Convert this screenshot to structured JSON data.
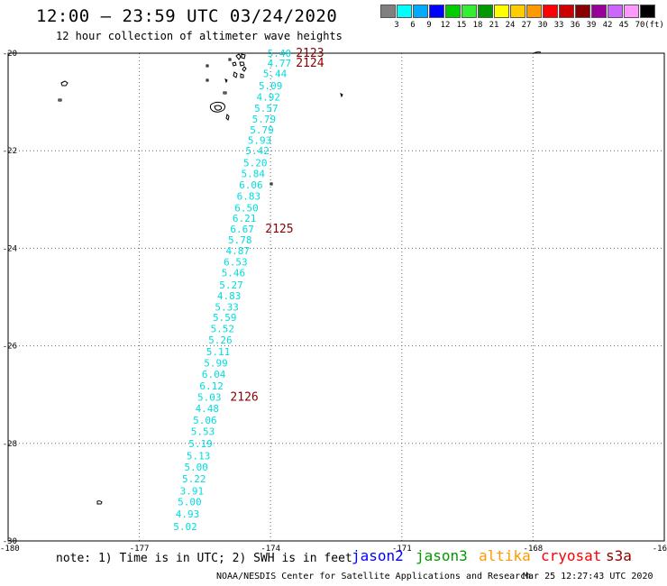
{
  "header": {
    "title": "12:00 – 23:59 UTC 03/24/2020",
    "subtitle": "12 hour collection of altimeter wave heights"
  },
  "legend": {
    "swatches": [
      "#808080",
      "#00ffff",
      "#00aaff",
      "#0000ff",
      "#00cc00",
      "#33ee33",
      "#009900",
      "#ffff00",
      "#ffcc00",
      "#ff9900",
      "#ff0000",
      "#cc0000",
      "#880000",
      "#990099",
      "#cc66ff",
      "#ff99ff",
      "#000000"
    ],
    "ticks": [
      "3",
      "6",
      "9",
      "12",
      "15",
      "18",
      "21",
      "24",
      "27",
      "30",
      "33",
      "36",
      "39",
      "42",
      "45",
      "70"
    ],
    "unit": "(ft)"
  },
  "axes": {
    "lat_labels": [
      "-20",
      "-22",
      "-24",
      "-26",
      "-28",
      "-30"
    ],
    "lon_labels": [
      "-180",
      "-177",
      "-174",
      "-171",
      "-168",
      "-16"
    ]
  },
  "swh_colors": {
    "default": "#00dddd",
    "pass": "#880000"
  },
  "observations": [
    {
      "value": "5.40",
      "lat": -20.0,
      "lon": -173.8
    },
    {
      "value": "4.77",
      "lat": -20.2,
      "lon": -173.8
    },
    {
      "value": "5.44",
      "lat": -20.42,
      "lon": -173.9
    },
    {
      "value": "5.09",
      "lat": -20.67,
      "lon": -174.0
    },
    {
      "value": "4.92",
      "lat": -20.9,
      "lon": -174.05
    },
    {
      "value": "5.57",
      "lat": -21.13,
      "lon": -174.1
    },
    {
      "value": "5.79",
      "lat": -21.35,
      "lon": -174.15
    },
    {
      "value": "5.79",
      "lat": -21.57,
      "lon": -174.2
    },
    {
      "value": "5.93",
      "lat": -21.78,
      "lon": -174.25
    },
    {
      "value": "5.42",
      "lat": -22.0,
      "lon": -174.3
    },
    {
      "value": "5.20",
      "lat": -22.25,
      "lon": -174.35
    },
    {
      "value": "5.84",
      "lat": -22.47,
      "lon": -174.4
    },
    {
      "value": "6.06",
      "lat": -22.7,
      "lon": -174.45
    },
    {
      "value": "6.83",
      "lat": -22.93,
      "lon": -174.5
    },
    {
      "value": "6.50",
      "lat": -23.17,
      "lon": -174.55
    },
    {
      "value": "6.21",
      "lat": -23.38,
      "lon": -174.6
    },
    {
      "value": "6.67",
      "lat": -23.6,
      "lon": -174.65
    },
    {
      "value": "5.78",
      "lat": -23.83,
      "lon": -174.7
    },
    {
      "value": "4.87",
      "lat": -24.05,
      "lon": -174.75
    },
    {
      "value": "6.53",
      "lat": -24.28,
      "lon": -174.8
    },
    {
      "value": "5.46",
      "lat": -24.5,
      "lon": -174.85
    },
    {
      "value": "5.27",
      "lat": -24.75,
      "lon": -174.9
    },
    {
      "value": "4.83",
      "lat": -24.97,
      "lon": -174.95
    },
    {
      "value": "5.33",
      "lat": -25.2,
      "lon": -175.0
    },
    {
      "value": "5.59",
      "lat": -25.42,
      "lon": -175.05
    },
    {
      "value": "5.52",
      "lat": -25.65,
      "lon": -175.1
    },
    {
      "value": "5.26",
      "lat": -25.88,
      "lon": -175.15
    },
    {
      "value": "5.11",
      "lat": -26.12,
      "lon": -175.2
    },
    {
      "value": "5.99",
      "lat": -26.35,
      "lon": -175.25
    },
    {
      "value": "6.04",
      "lat": -26.58,
      "lon": -175.3
    },
    {
      "value": "6.12",
      "lat": -26.82,
      "lon": -175.35
    },
    {
      "value": "5.03",
      "lat": -27.05,
      "lon": -175.4
    },
    {
      "value": "4.48",
      "lat": -27.28,
      "lon": -175.45
    },
    {
      "value": "5.06",
      "lat": -27.52,
      "lon": -175.5
    },
    {
      "value": "5.53",
      "lat": -27.75,
      "lon": -175.55
    },
    {
      "value": "5.19",
      "lat": -28.0,
      "lon": -175.6
    },
    {
      "value": "5.13",
      "lat": -28.25,
      "lon": -175.65
    },
    {
      "value": "5.00",
      "lat": -28.48,
      "lon": -175.7
    },
    {
      "value": "5.22",
      "lat": -28.72,
      "lon": -175.75
    },
    {
      "value": "3.91",
      "lat": -28.97,
      "lon": -175.8
    },
    {
      "value": "5.00",
      "lat": -29.2,
      "lon": -175.85
    },
    {
      "value": "4.93",
      "lat": -29.45,
      "lon": -175.9
    },
    {
      "value": "5.02",
      "lat": -29.7,
      "lon": -175.95
    }
  ],
  "pass_numbers": [
    {
      "value": "2123",
      "lat": -20.0,
      "lon": -173.1
    },
    {
      "value": "2124",
      "lat": -20.2,
      "lon": -173.1
    },
    {
      "value": "2125",
      "lat": -23.6,
      "lon": -173.8
    },
    {
      "value": "2126",
      "lat": -27.05,
      "lon": -174.6
    }
  ],
  "footer": {
    "note": "note: 1) Time is in UTC; 2) SWH is in feet",
    "satellites": [
      {
        "label": "jason2",
        "color": "#0000ff"
      },
      {
        "label": "jason3",
        "color": "#009900"
      },
      {
        "label": "altika",
        "color": "#ff9900"
      },
      {
        "label": "cryosat",
        "color": "#ff0000"
      },
      {
        "label": "s3a",
        "color": "#880000"
      }
    ],
    "credit": "NOAA/NESDIS Center for Satellite Applications and Research",
    "timestamp": "Mar 25 12:27:43 UTC 2020"
  }
}
